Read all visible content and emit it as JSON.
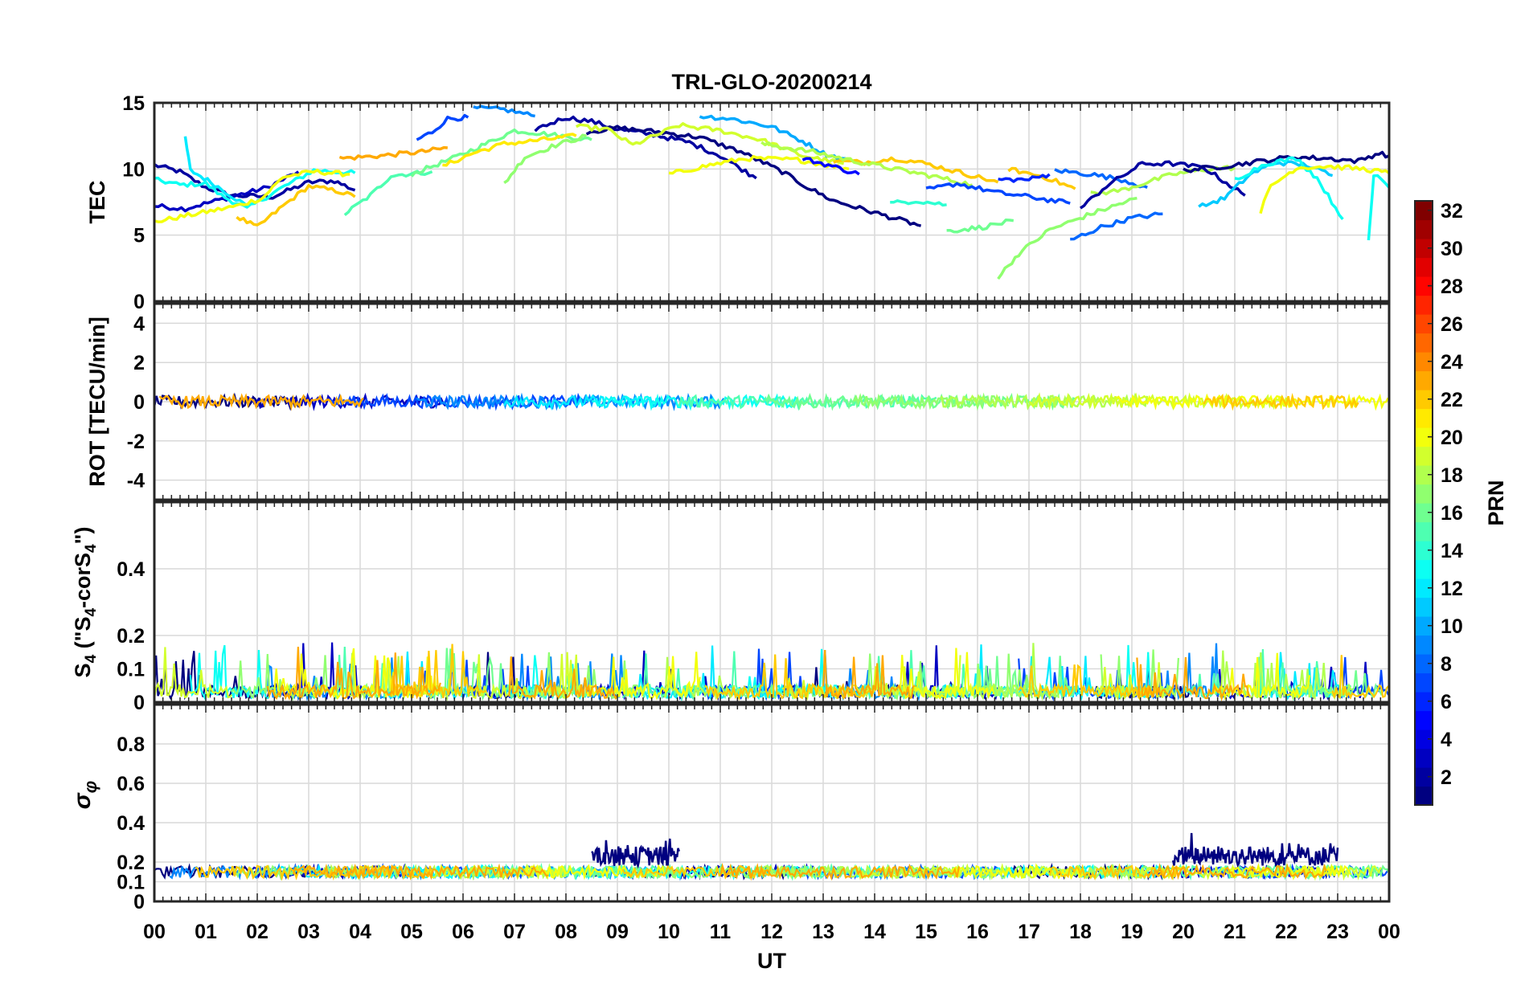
{
  "chart_data": {
    "type": "line",
    "title": "TRL-GLO-20200214",
    "xlabel": "UT",
    "x_tick_labels": [
      "00",
      "01",
      "02",
      "03",
      "04",
      "05",
      "06",
      "07",
      "08",
      "09",
      "10",
      "11",
      "12",
      "13",
      "14",
      "15",
      "16",
      "17",
      "18",
      "19",
      "20",
      "21",
      "22",
      "23",
      "00"
    ],
    "x_range_hours": [
      0,
      24
    ],
    "grid": true,
    "panels": [
      {
        "name": "tec",
        "ylabel": "TEC",
        "ylim": [
          0,
          15
        ],
        "yticks": [
          0,
          5,
          10,
          15
        ],
        "tracks": [
          {
            "prn": 2,
            "points": [
              [
                0,
                10.3
              ],
              [
                0.5,
                9.8
              ],
              [
                1,
                8.6
              ],
              [
                1.5,
                8.0
              ],
              [
                2.3,
                7.9
              ],
              [
                3,
                9.0
              ],
              [
                3.5,
                9.1
              ],
              [
                3.9,
                8.4
              ]
            ]
          },
          {
            "prn": 3,
            "points": [
              [
                0,
                7.2
              ],
              [
                0.6,
                7.0
              ],
              [
                1.4,
                7.8
              ],
              [
                2.2,
                8.6
              ],
              [
                2.8,
                9.8
              ]
            ]
          },
          {
            "prn": 13,
            "points": [
              [
                0,
                9.2
              ],
              [
                0.5,
                8.8
              ],
              [
                1,
                8.9
              ],
              [
                1.3,
                8.0
              ],
              [
                1.8,
                7.0
              ],
              [
                2.4,
                8.4
              ],
              [
                3.1,
                9.9
              ],
              [
                3.9,
                9.7
              ]
            ]
          },
          {
            "prn": 12,
            "points": [
              [
                0.6,
                12.4
              ],
              [
                0.7,
                9.9
              ],
              [
                1.1,
                9.0
              ],
              [
                1.8,
                7.2
              ]
            ]
          },
          {
            "prn": 20,
            "points": [
              [
                0,
                6.0
              ],
              [
                0.8,
                6.6
              ],
              [
                1.6,
                7.2
              ],
              [
                2.1,
                7.8
              ],
              [
                2.5,
                9.4
              ],
              [
                3.1,
                9.8
              ],
              [
                3.8,
                9.6
              ]
            ]
          },
          {
            "prn": 22,
            "points": [
              [
                1.6,
                6.4
              ],
              [
                2,
                5.6
              ],
              [
                2.5,
                7.2
              ],
              [
                3,
                8.7
              ],
              [
                3.6,
                8.3
              ],
              [
                3.9,
                7.9
              ]
            ]
          },
          {
            "prn": 15,
            "points": [
              [
                3.7,
                6.6
              ],
              [
                4.2,
                8.0
              ],
              [
                4.6,
                9.5
              ],
              [
                5.4,
                9.8
              ]
            ]
          },
          {
            "prn": 23,
            "points": [
              [
                3.6,
                10.8
              ],
              [
                4.4,
                11.0
              ],
              [
                5.2,
                11.3
              ],
              [
                5.7,
                11.6
              ]
            ]
          },
          {
            "prn": 7,
            "points": [
              [
                5.1,
                12.2
              ],
              [
                5.4,
                12.8
              ],
              [
                5.7,
                13.8
              ],
              [
                6.1,
                13.9
              ]
            ]
          },
          {
            "prn": 9,
            "points": [
              [
                6.2,
                14.6
              ],
              [
                6.8,
                14.5
              ],
              [
                7.4,
                14.0
              ]
            ]
          },
          {
            "prn": 16,
            "points": [
              [
                5.0,
                9.6
              ],
              [
                5.8,
                10.8
              ],
              [
                6.5,
                12.0
              ],
              [
                7.0,
                12.9
              ],
              [
                7.5,
                12.7
              ],
              [
                8.5,
                12.2
              ]
            ]
          },
          {
            "prn": 17,
            "points": [
              [
                6.8,
                8.9
              ],
              [
                7.2,
                10.9
              ],
              [
                7.8,
                11.8
              ],
              [
                8.4,
                12.5
              ]
            ]
          },
          {
            "prn": 21,
            "points": [
              [
                5.6,
                10.2
              ],
              [
                6.2,
                11.2
              ],
              [
                6.8,
                11.9
              ],
              [
                7.3,
                12.1
              ],
              [
                8.2,
                12.5
              ]
            ]
          },
          {
            "prn": 2,
            "points": [
              [
                7.4,
                13.0
              ],
              [
                8.0,
                13.9
              ],
              [
                8.5,
                13.6
              ],
              [
                9.0,
                13.0
              ],
              [
                9.7,
                12.6
              ],
              [
                10.4,
                12.0
              ],
              [
                11.0,
                11.0
              ],
              [
                11.7,
                9.3
              ]
            ]
          },
          {
            "prn": 1,
            "points": [
              [
                8.4,
                12.8
              ],
              [
                9.0,
                13.1
              ],
              [
                9.8,
                12.8
              ],
              [
                10.6,
                12.4
              ],
              [
                11.4,
                11.3
              ],
              [
                12.2,
                9.8
              ],
              [
                12.7,
                8.6
              ],
              [
                13.2,
                7.6
              ],
              [
                14.0,
                6.7
              ],
              [
                14.9,
                5.7
              ]
            ]
          },
          {
            "prn": 19,
            "points": [
              [
                8.2,
                13.2
              ],
              [
                8.8,
                13.0
              ],
              [
                9.3,
                11.8
              ],
              [
                10.2,
                13.3
              ],
              [
                11.0,
                12.9
              ],
              [
                11.8,
                12.2
              ],
              [
                12.6,
                11.0
              ],
              [
                13.4,
                10.4
              ]
            ]
          },
          {
            "prn": 20,
            "points": [
              [
                10.0,
                9.6
              ],
              [
                10.8,
                10.3
              ],
              [
                11.5,
                10.8
              ],
              [
                12.5,
                10.7
              ],
              [
                13.5,
                10.0
              ]
            ]
          },
          {
            "prn": 10,
            "points": [
              [
                10.6,
                14.0
              ],
              [
                11.2,
                13.8
              ],
              [
                12.0,
                13.2
              ],
              [
                12.6,
                12.1
              ],
              [
                13.0,
                11.2
              ],
              [
                13.5,
                10.6
              ]
            ]
          },
          {
            "prn": 5,
            "points": [
              [
                12.6,
                10.8
              ],
              [
                13.1,
                10.3
              ],
              [
                13.7,
                9.6
              ]
            ]
          },
          {
            "prn": 22,
            "points": [
              [
                13.2,
                10.6
              ],
              [
                13.8,
                10.5
              ],
              [
                14.4,
                10.8
              ],
              [
                15.0,
                10.4
              ],
              [
                15.8,
                9.6
              ],
              [
                16.4,
                9.0
              ]
            ]
          },
          {
            "prn": 18,
            "points": [
              [
                11.8,
                11.9
              ],
              [
                12.8,
                11.3
              ],
              [
                13.6,
                10.6
              ],
              [
                14.4,
                10.0
              ],
              [
                15.2,
                9.4
              ],
              [
                15.9,
                8.8
              ]
            ]
          },
          {
            "prn": 14,
            "points": [
              [
                14.3,
                7.4
              ],
              [
                14.8,
                7.6
              ],
              [
                15.4,
                7.3
              ]
            ]
          },
          {
            "prn": 16,
            "points": [
              [
                15.4,
                5.3
              ],
              [
                16.1,
                5.6
              ],
              [
                16.7,
                6.1
              ]
            ]
          },
          {
            "prn": 7,
            "points": [
              [
                15.0,
                8.4
              ],
              [
                15.6,
                8.9
              ],
              [
                16.4,
                8.2
              ],
              [
                17.0,
                7.9
              ],
              [
                17.8,
                7.4
              ]
            ]
          },
          {
            "prn": 22,
            "points": [
              [
                16.6,
                10.0
              ],
              [
                17.3,
                9.4
              ],
              [
                17.9,
                8.5
              ]
            ]
          },
          {
            "prn": 6,
            "points": [
              [
                16.4,
                9.2
              ],
              [
                17.0,
                9.2
              ],
              [
                17.4,
                9.6
              ]
            ]
          },
          {
            "prn": 17,
            "points": [
              [
                16.4,
                1.8
              ],
              [
                16.8,
                3.6
              ],
              [
                17.4,
                5.4
              ],
              [
                18.2,
                6.6
              ],
              [
                19.1,
                7.8
              ]
            ]
          },
          {
            "prn": 8,
            "points": [
              [
                17.8,
                4.6
              ],
              [
                18.4,
                5.6
              ],
              [
                19.0,
                6.3
              ],
              [
                19.6,
                6.6
              ]
            ]
          },
          {
            "prn": 8,
            "points": [
              [
                17.5,
                9.9
              ],
              [
                18.2,
                9.6
              ],
              [
                18.8,
                9.2
              ],
              [
                19.3,
                8.6
              ]
            ]
          },
          {
            "prn": 18,
            "points": [
              [
                18.2,
                8.1
              ],
              [
                18.8,
                8.4
              ],
              [
                19.8,
                9.6
              ],
              [
                20.5,
                10.0
              ],
              [
                21.0,
                10.1
              ]
            ]
          },
          {
            "prn": 2,
            "points": [
              [
                18.0,
                7.0
              ],
              [
                18.5,
                8.7
              ],
              [
                19.2,
                10.4
              ],
              [
                19.8,
                10.4
              ],
              [
                20.4,
                10.1
              ],
              [
                21.2,
                8.0
              ]
            ]
          },
          {
            "prn": 1,
            "points": [
              [
                20.0,
                9.9
              ],
              [
                20.8,
                10.2
              ],
              [
                21.5,
                10.6
              ],
              [
                22.1,
                10.9
              ],
              [
                22.8,
                10.8
              ],
              [
                23.4,
                10.6
              ],
              [
                23.8,
                11.2
              ],
              [
                24.0,
                11.0
              ]
            ]
          },
          {
            "prn": 11,
            "points": [
              [
                20.3,
                7.1
              ],
              [
                20.8,
                7.8
              ],
              [
                21.3,
                9.6
              ],
              [
                21.8,
                10.5
              ],
              [
                22.4,
                10.3
              ],
              [
                22.9,
                9.5
              ]
            ]
          },
          {
            "prn": 13,
            "points": [
              [
                21.0,
                9.2
              ],
              [
                21.6,
                10.4
              ],
              [
                22.2,
                10.8
              ],
              [
                22.6,
                9.3
              ],
              [
                23.1,
                6.2
              ]
            ]
          },
          {
            "prn": 20,
            "points": [
              [
                21.5,
                6.8
              ],
              [
                21.7,
                8.7
              ],
              [
                22.2,
                10.1
              ],
              [
                22.8,
                10.2
              ],
              [
                23.5,
                10.0
              ],
              [
                24.0,
                9.7
              ]
            ]
          },
          {
            "prn": 13,
            "points": [
              [
                23.6,
                4.5
              ],
              [
                23.7,
                9.6
              ],
              [
                24.0,
                8.6
              ]
            ]
          }
        ]
      },
      {
        "name": "rot",
        "ylabel": "ROT [TECU/min]",
        "ylim": [
          -5,
          5
        ],
        "yticks": [
          -4,
          -2,
          0,
          2,
          4
        ],
        "band_center": 0,
        "band_halfwidth": 0.3
      },
      {
        "name": "s4",
        "ylabel": "S4 (\"S4-corS4\")",
        "ylabel_base": "S",
        "ylabel_sub": "4",
        "ylabel_mid": " (\"S",
        "ylabel_tail": "-corS",
        "ylabel_end": "\")",
        "ylim": [
          0,
          0.6
        ],
        "yticks": [
          0,
          0.1,
          0.2,
          0.4
        ],
        "base_level": 0.03,
        "spike_max": 0.19
      },
      {
        "name": "sigma_phi",
        "ylabel": "σφ",
        "ylabel_main": "σ",
        "ylabel_sub": "φ",
        "ylim": [
          0,
          1
        ],
        "yticks": [
          0,
          0.1,
          0.2,
          0.4,
          0.6,
          0.8
        ],
        "baseline": 0.15,
        "elevated_segments": [
          {
            "prn": 1,
            "start": 8.5,
            "end": 10.2,
            "level": 0.23
          },
          {
            "prn": 1,
            "start": 19.8,
            "end": 23.0,
            "level": 0.23
          }
        ]
      }
    ],
    "colorbar": {
      "label": "PRN",
      "min": 1,
      "max": 32,
      "ticks": [
        2,
        4,
        6,
        8,
        10,
        12,
        14,
        16,
        18,
        20,
        22,
        24,
        26,
        28,
        30,
        32
      ],
      "colormap": "jet"
    }
  }
}
